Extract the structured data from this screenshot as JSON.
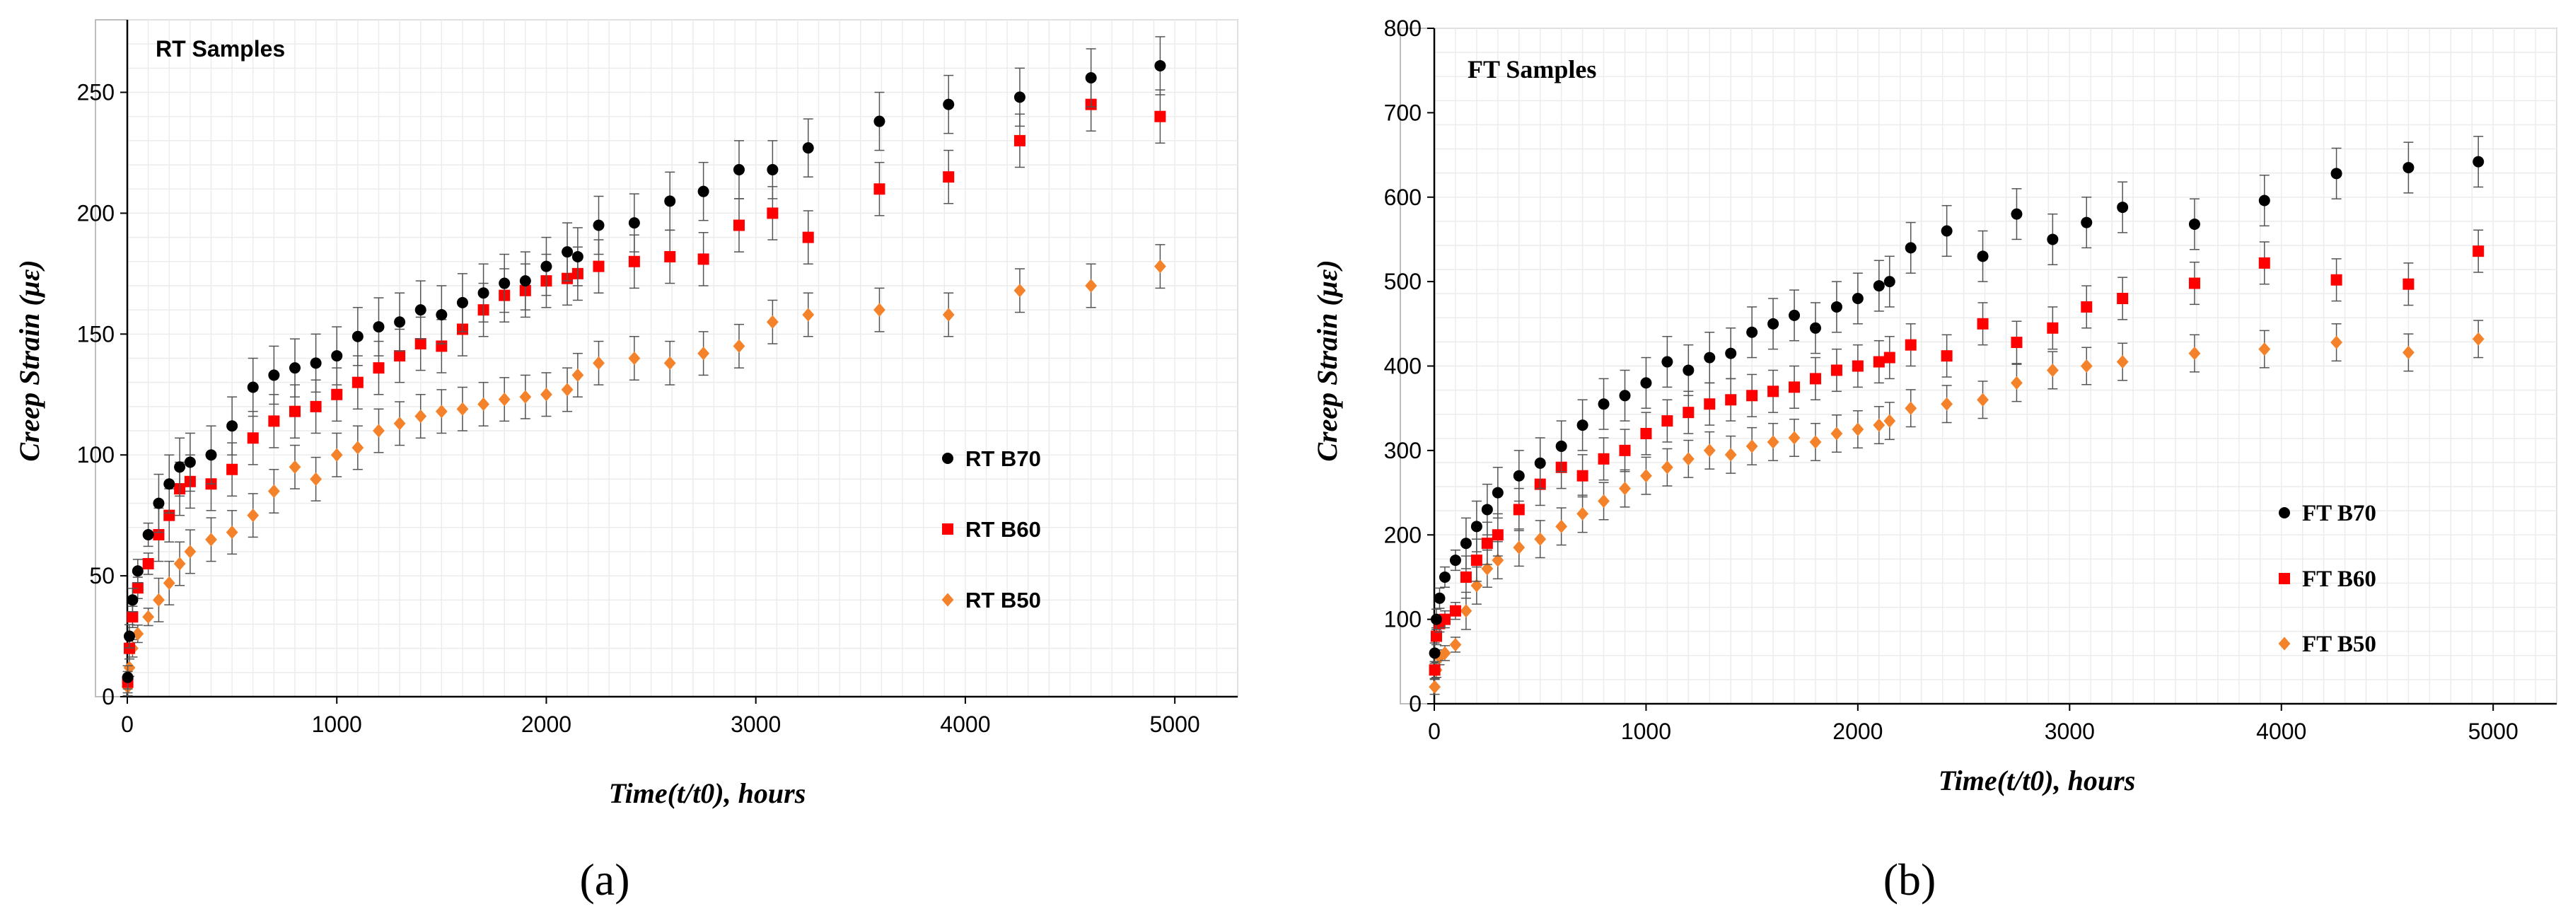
{
  "chart_data": [
    {
      "type": "scatter",
      "title": "RT Samples",
      "xlabel": "Time(t/t0), hours",
      "ylabel": "Creep Strain (με)",
      "xlim": [
        0,
        5300
      ],
      "ylim": [
        0,
        280
      ],
      "x_ticks": [
        "0",
        "1000",
        "2000",
        "3000",
        "4000",
        "5000"
      ],
      "y_ticks": [
        "0",
        "50",
        "100",
        "150",
        "200",
        "250"
      ],
      "grid": true,
      "legend_position": "right",
      "subfigure_label": "(a)",
      "series": [
        {
          "name": "RT B70",
          "color": "#000000",
          "marker": "circle",
          "x": [
            2,
            10,
            25,
            50,
            100,
            150,
            200,
            250,
            300,
            400,
            500,
            600,
            700,
            800,
            900,
            1000,
            1100,
            1200,
            1300,
            1400,
            1500,
            1600,
            1700,
            1800,
            1900,
            2000,
            2100,
            2150,
            2250,
            2420,
            2590,
            2750,
            2920,
            3080,
            3250,
            3590,
            3920,
            4260,
            4600,
            4930
          ],
          "y": [
            8,
            25,
            40,
            52,
            67,
            80,
            88,
            95,
            97,
            100,
            112,
            128,
            133,
            136,
            138,
            141,
            149,
            153,
            155,
            160,
            158,
            163,
            167,
            171,
            172,
            178,
            184,
            182,
            195,
            196,
            205,
            209,
            218,
            218,
            227,
            238,
            245,
            248,
            256,
            261
          ],
          "error": 12
        },
        {
          "name": "RT B60",
          "color": "#ff0000",
          "marker": "square",
          "x": [
            2,
            10,
            25,
            50,
            100,
            150,
            200,
            250,
            300,
            400,
            500,
            600,
            700,
            800,
            900,
            1000,
            1100,
            1200,
            1300,
            1400,
            1500,
            1600,
            1700,
            1800,
            1900,
            2000,
            2100,
            2150,
            2250,
            2420,
            2590,
            2750,
            2920,
            3080,
            3250,
            3590,
            3920,
            4260,
            4600,
            4930
          ],
          "y": [
            6,
            20,
            33,
            45,
            55,
            67,
            75,
            86,
            89,
            88,
            94,
            107,
            114,
            118,
            120,
            125,
            130,
            136,
            141,
            146,
            145,
            152,
            160,
            166,
            168,
            172,
            173,
            175,
            178,
            180,
            182,
            181,
            195,
            200,
            190,
            210,
            215,
            230,
            245,
            240
          ],
          "error": 11
        },
        {
          "name": "RT B50",
          "color": "#f4822a",
          "marker": "diamond",
          "x": [
            2,
            10,
            25,
            50,
            100,
            150,
            200,
            250,
            300,
            400,
            500,
            600,
            700,
            800,
            900,
            1000,
            1100,
            1200,
            1300,
            1400,
            1500,
            1600,
            1700,
            1800,
            1900,
            2000,
            2100,
            2150,
            2250,
            2420,
            2590,
            2750,
            2920,
            3080,
            3250,
            3590,
            3920,
            4260,
            4600,
            4930
          ],
          "y": [
            4,
            12,
            20,
            26,
            33,
            40,
            47,
            55,
            60,
            65,
            68,
            75,
            85,
            95,
            90,
            100,
            103,
            110,
            113,
            116,
            118,
            119,
            121,
            123,
            124,
            125,
            127,
            133,
            138,
            140,
            138,
            142,
            145,
            155,
            158,
            160,
            158,
            168,
            170,
            178
          ],
          "error": 9
        }
      ]
    },
    {
      "type": "scatter",
      "title": "FT Samples",
      "xlabel": "Time(t/t0), hours",
      "ylabel": "Creep Strain (με)",
      "xlim": [
        0,
        5300
      ],
      "ylim": [
        0,
        800
      ],
      "x_ticks": [
        "0",
        "1000",
        "2000",
        "3000",
        "4000",
        "5000"
      ],
      "y_ticks": [
        "0",
        "100",
        "200",
        "300",
        "400",
        "500",
        "600",
        "700",
        "800"
      ],
      "grid": true,
      "legend_position": "right",
      "subfigure_label": "(b)",
      "series": [
        {
          "name": "FT B70",
          "color": "#000000",
          "marker": "circle",
          "x": [
            2,
            10,
            25,
            50,
            100,
            150,
            200,
            250,
            300,
            400,
            500,
            600,
            700,
            800,
            900,
            1000,
            1100,
            1200,
            1300,
            1400,
            1500,
            1600,
            1700,
            1800,
            1900,
            2000,
            2100,
            2150,
            2250,
            2420,
            2590,
            2750,
            2920,
            3080,
            3250,
            3590,
            3920,
            4260,
            4600,
            4930
          ],
          "y": [
            60,
            100,
            125,
            150,
            170,
            190,
            210,
            230,
            250,
            270,
            285,
            305,
            330,
            355,
            365,
            380,
            405,
            395,
            410,
            415,
            440,
            450,
            460,
            445,
            470,
            480,
            495,
            500,
            540,
            560,
            530,
            580,
            550,
            570,
            588,
            568,
            596,
            628,
            635,
            642
          ],
          "error": 30
        },
        {
          "name": "FT B60",
          "color": "#ff0000",
          "marker": "square",
          "x": [
            2,
            10,
            25,
            50,
            100,
            150,
            200,
            250,
            300,
            400,
            500,
            600,
            700,
            800,
            900,
            1000,
            1100,
            1200,
            1300,
            1400,
            1500,
            1600,
            1700,
            1800,
            1900,
            2000,
            2100,
            2150,
            2250,
            2420,
            2590,
            2750,
            2920,
            3080,
            3250,
            3590,
            3920,
            4260,
            4600,
            4930
          ],
          "y": [
            40,
            80,
            95,
            100,
            110,
            150,
            170,
            190,
            200,
            230,
            260,
            280,
            270,
            290,
            300,
            320,
            335,
            345,
            355,
            360,
            365,
            370,
            375,
            385,
            395,
            400,
            405,
            410,
            425,
            412,
            450,
            428,
            445,
            470,
            480,
            498,
            522,
            502,
            497,
            536
          ],
          "error": 25
        },
        {
          "name": "FT B50",
          "color": "#f4822a",
          "marker": "diamond",
          "x": [
            2,
            10,
            25,
            50,
            100,
            150,
            200,
            250,
            300,
            400,
            500,
            600,
            700,
            800,
            900,
            1000,
            1100,
            1200,
            1300,
            1400,
            1500,
            1600,
            1700,
            1800,
            1900,
            2000,
            2100,
            2150,
            2250,
            2420,
            2590,
            2750,
            2920,
            3080,
            3250,
            3590,
            3920,
            4260,
            4600,
            4930
          ],
          "y": [
            20,
            40,
            55,
            60,
            70,
            110,
            140,
            160,
            170,
            185,
            195,
            210,
            225,
            240,
            255,
            270,
            280,
            290,
            300,
            295,
            305,
            310,
            315,
            310,
            320,
            325,
            330,
            335,
            350,
            355,
            360,
            380,
            395,
            400,
            405,
            415,
            420,
            428,
            416,
            432
          ],
          "error": 22
        }
      ]
    }
  ]
}
